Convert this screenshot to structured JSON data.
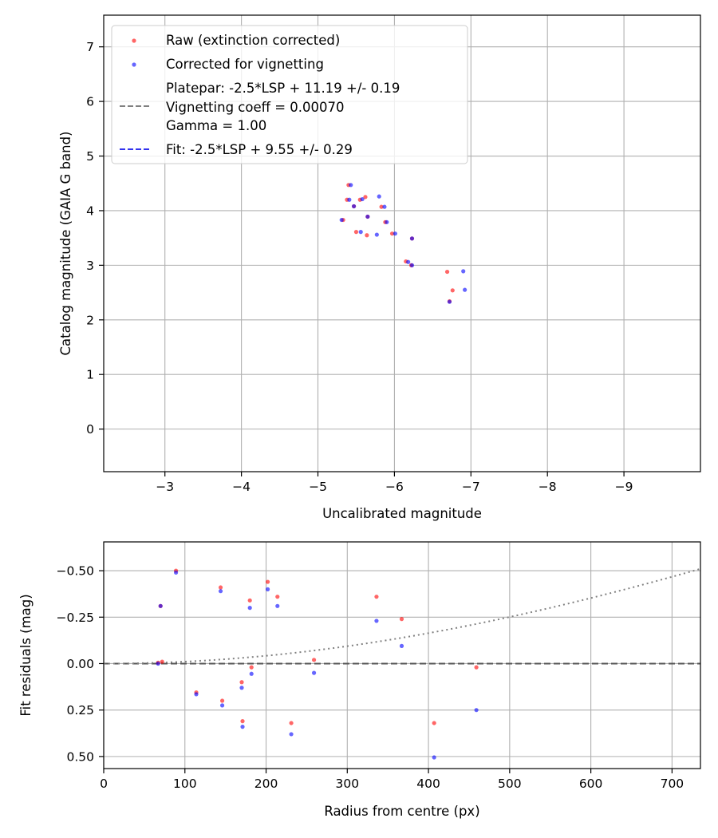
{
  "chart_data": [
    {
      "type": "scatter",
      "xlabel": "Uncalibrated magnitude",
      "ylabel": "Catalog magnitude (GAIA G band)",
      "xlim": [
        -2.2,
        -10.0
      ],
      "ylim": [
        7.58,
        -0.78
      ],
      "x_inverted": true,
      "y_inverted": true,
      "xticks": [
        -3,
        -4,
        -5,
        -6,
        -7,
        -8,
        -9
      ],
      "xtick_labels": [
        "−3",
        "−4",
        "−5",
        "−6",
        "−7",
        "−8",
        "−9"
      ],
      "yticks": [
        0,
        1,
        2,
        3,
        4,
        5,
        6,
        7
      ],
      "ytick_labels": [
        "0",
        "1",
        "2",
        "3",
        "4",
        "5",
        "6",
        "7"
      ],
      "grid": true,
      "legend_position": "top-left",
      "legend": [
        {
          "label": "Raw (extinction corrected)",
          "kind": "marker",
          "color": "#ff0000"
        },
        {
          "label": "Corrected for vignetting",
          "kind": "marker",
          "color": "#0000ff"
        },
        {
          "label": "Platepar: -2.5*LSP + 11.19 +/- 0.19",
          "kind": "none"
        },
        {
          "label": "Vignetting coeff = 0.00070",
          "kind": "dashed",
          "color": "#808080"
        },
        {
          "label": "Gamma = 1.00",
          "kind": "none"
        },
        {
          "label": "Fit: -2.5*LSP + 9.55 +/- 0.29",
          "kind": "dashed",
          "color": "#3333ee"
        }
      ],
      "lines": [
        {
          "name": "Platepar",
          "slope": -1,
          "intercept": 11.19,
          "color": "#808080"
        },
        {
          "name": "Fit",
          "slope": -1,
          "intercept": 9.55,
          "color": "#3333ee"
        }
      ],
      "series": [
        {
          "name": "Raw (extinction corrected)",
          "color": "#ff0000",
          "points": [
            [
              -6.76,
              2.54
            ],
            [
              -6.69,
              2.88
            ],
            [
              -6.72,
              2.34
            ],
            [
              -6.22,
              3.0
            ],
            [
              -6.15,
              3.07
            ],
            [
              -6.23,
              3.49
            ],
            [
              -5.97,
              3.58
            ],
            [
              -5.88,
              3.79
            ],
            [
              -5.64,
              3.55
            ],
            [
              -5.5,
              3.61
            ],
            [
              -5.33,
              3.83
            ],
            [
              -5.83,
              4.07
            ],
            [
              -5.62,
              4.25
            ],
            [
              -5.55,
              4.2
            ],
            [
              -5.38,
              4.2
            ],
            [
              -5.4,
              4.47
            ],
            [
              -5.65,
              3.89
            ],
            [
              -5.47,
              4.08
            ]
          ]
        },
        {
          "name": "Corrected for vignetting",
          "color": "#0000ff",
          "points": [
            [
              -6.92,
              2.55
            ],
            [
              -6.9,
              2.89
            ],
            [
              -6.72,
              2.33
            ],
            [
              -6.23,
              3.0
            ],
            [
              -6.18,
              3.06
            ],
            [
              -6.23,
              3.49
            ],
            [
              -6.01,
              3.58
            ],
            [
              -5.9,
              3.79
            ],
            [
              -5.77,
              3.56
            ],
            [
              -5.56,
              3.61
            ],
            [
              -5.31,
              3.83
            ],
            [
              -5.87,
              4.07
            ],
            [
              -5.8,
              4.26
            ],
            [
              -5.58,
              4.21
            ],
            [
              -5.41,
              4.2
            ],
            [
              -5.43,
              4.47
            ],
            [
              -5.65,
              3.89
            ],
            [
              -5.47,
              4.08
            ]
          ]
        }
      ]
    },
    {
      "type": "scatter",
      "xlabel": "Radius from centre (px)",
      "ylabel": "Fit residuals (mag)",
      "xlim": [
        0,
        735
      ],
      "ylim": [
        -0.655,
        0.565
      ],
      "xticks": [
        0,
        100,
        200,
        300,
        400,
        500,
        600,
        700
      ],
      "xtick_labels": [
        "0",
        "100",
        "200",
        "300",
        "400",
        "500",
        "600",
        "700"
      ],
      "yticks": [
        0.5,
        0.25,
        0.0,
        -0.25,
        -0.5
      ],
      "ytick_labels": [
        "0.50",
        "0.25",
        "0.00",
        "−0.25",
        "−0.50"
      ],
      "grid": true,
      "lines": [
        {
          "name": "zero",
          "kind": "dashed",
          "color": "#555555",
          "value": 0
        },
        {
          "name": "vignetting model",
          "kind": "dotted",
          "color": "#808080",
          "coeff": 0.0007
        }
      ],
      "series": [
        {
          "name": "Raw (extinction corrected)",
          "color": "#ff0000",
          "points": [
            [
              67,
              -0.005
            ],
            [
              70,
              -0.31
            ],
            [
              72,
              -0.01
            ],
            [
              89,
              -0.5
            ],
            [
              114,
              0.155
            ],
            [
              144,
              -0.41
            ],
            [
              146,
              0.2
            ],
            [
              170,
              0.1
            ],
            [
              171,
              0.31
            ],
            [
              180,
              -0.34
            ],
            [
              182,
              0.02
            ],
            [
              202,
              -0.44
            ],
            [
              214,
              -0.36
            ],
            [
              231,
              0.32
            ],
            [
              259,
              -0.02
            ],
            [
              336,
              -0.36
            ],
            [
              367,
              -0.24
            ],
            [
              407,
              0.32
            ],
            [
              459,
              0.02
            ]
          ]
        },
        {
          "name": "Corrected for vignetting",
          "color": "#0000ff",
          "points": [
            [
              67,
              -0.0
            ],
            [
              70,
              -0.31
            ],
            [
              89,
              -0.49
            ],
            [
              114,
              0.165
            ],
            [
              144,
              -0.39
            ],
            [
              146,
              0.225
            ],
            [
              170,
              0.13
            ],
            [
              171,
              0.34
            ],
            [
              180,
              -0.3
            ],
            [
              182,
              0.055
            ],
            [
              202,
              -0.4
            ],
            [
              214,
              -0.31
            ],
            [
              231,
              0.38
            ],
            [
              259,
              0.05
            ],
            [
              336,
              -0.23
            ],
            [
              367,
              -0.095
            ],
            [
              407,
              0.505
            ],
            [
              459,
              0.25
            ]
          ]
        }
      ]
    }
  ]
}
